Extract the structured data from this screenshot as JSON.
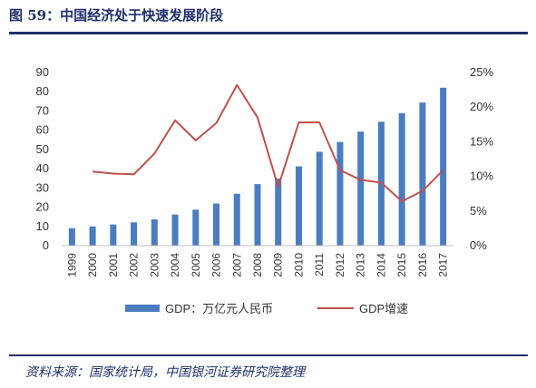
{
  "header": {
    "title": "图 59：中国经济处于快速发展阶段"
  },
  "footer": {
    "source": "资料来源：国家统计局，中国银河证券研究院整理"
  },
  "colors": {
    "bar": "#4a7cc0",
    "line": "#c0504d",
    "accent": "#1f2f6b"
  },
  "chart_data": {
    "type": "bar",
    "title": "",
    "categories": [
      "1999",
      "2000",
      "2001",
      "2002",
      "2003",
      "2004",
      "2005",
      "2006",
      "2007",
      "2008",
      "2009",
      "2010",
      "2011",
      "2012",
      "2013",
      "2014",
      "2015",
      "2016",
      "2017"
    ],
    "series": [
      {
        "name": "GDP：万亿元人民币",
        "type": "bar",
        "axis": "left",
        "values": [
          9.1,
          10.0,
          11.0,
          12.1,
          13.7,
          16.2,
          18.7,
          21.9,
          27.0,
          32.0,
          34.9,
          41.2,
          48.8,
          53.9,
          59.3,
          64.4,
          68.9,
          74.4,
          82.1
        ]
      },
      {
        "name": "GDP增速",
        "type": "line",
        "axis": "right",
        "values": [
          null,
          10.7,
          10.4,
          10.3,
          13.3,
          18.1,
          15.2,
          17.7,
          23.2,
          18.5,
          8.5,
          17.8,
          17.8,
          10.9,
          9.5,
          9.1,
          6.4,
          7.9,
          10.9
        ]
      }
    ],
    "yleft": {
      "min": 0,
      "max": 90,
      "ticks": [
        0,
        10,
        20,
        30,
        40,
        50,
        60,
        70,
        80,
        90
      ]
    },
    "yright": {
      "min": 0,
      "max": 25,
      "ticks": [
        "0%",
        "5%",
        "10%",
        "15%",
        "20%",
        "25%"
      ]
    },
    "legend_position": "bottom",
    "grid": false
  }
}
